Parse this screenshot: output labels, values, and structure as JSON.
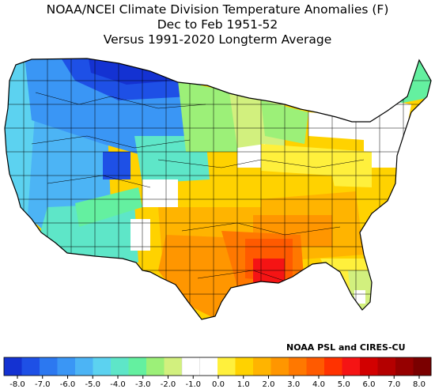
{
  "header": {
    "line1": "NOAA/NCEI Climate Division Temperature Anomalies (F)",
    "line2": "Dec to Feb 1951-52",
    "line3": "Versus 1991-2020 Longterm Average"
  },
  "credit": "NOAA PSL and CIRES-CU",
  "legend": {
    "ticks": [
      "-8.0",
      "-7.0",
      "-6.0",
      "-5.0",
      "-4.0",
      "-3.0",
      "-2.0",
      "-1.0",
      "0.0",
      "1.0",
      "2.0",
      "3.0",
      "4.0",
      "5.0",
      "6.0",
      "7.0",
      "8.0"
    ],
    "colors": [
      "#1432d2",
      "#1e50e6",
      "#2c78f0",
      "#3a96f5",
      "#4cb4f5",
      "#5cd2f0",
      "#5ee6c8",
      "#64f0a0",
      "#9cf078",
      "#d2f07e",
      "#ffffff",
      "#ffffff",
      "#fff03c",
      "#ffd200",
      "#ffb400",
      "#ff9600",
      "#ff7800",
      "#ff5a00",
      "#ff3200",
      "#f51414",
      "#d20000",
      "#b40000",
      "#960000",
      "#7a0000"
    ]
  },
  "map": {
    "region": "Contiguous United States climate divisions",
    "colors": {
      "strong_cold": "#1432d2",
      "cold": "#2c78f0",
      "cool": "#4cb4f5",
      "cyan": "#5cd2f0",
      "teal": "#5ee6c8",
      "mint": "#64f0a0",
      "light_green": "#9cf078",
      "pale_green": "#d2f07e",
      "neutral": "#ffffff",
      "yellow": "#fff03c",
      "gold": "#ffd200",
      "orange": "#ffb400",
      "dark_orange": "#ff9600",
      "orange_red": "#ff7800",
      "red_orange": "#ff5a00",
      "red": "#f51414",
      "border": "#000000"
    }
  }
}
